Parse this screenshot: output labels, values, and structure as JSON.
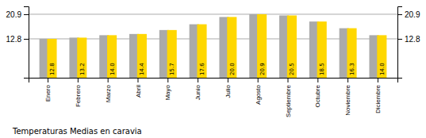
{
  "chart_data": {
    "type": "bar",
    "title": "Temperaturas Medias en caravia",
    "categories": [
      "Enero",
      "Febrero",
      "Marzo",
      "Abril",
      "Mayo",
      "Junio",
      "Julio",
      "Agosto",
      "Septiembre",
      "Octubre",
      "Noviembre",
      "Diciembre"
    ],
    "series": [
      {
        "color": "#AAAAAA",
        "values": [
          12.8,
          13.2,
          14.0,
          14.4,
          15.7,
          17.6,
          20.0,
          20.9,
          20.5,
          18.5,
          16.3,
          14.0
        ]
      },
      {
        "color": "#FFD700",
        "values": [
          12.8,
          13.2,
          14.0,
          14.4,
          15.7,
          17.6,
          20.0,
          20.9,
          20.5,
          18.5,
          16.3,
          14.0
        ],
        "value_labels": [
          "12.8",
          "13.2",
          "14.0",
          "14.4",
          "15.7",
          "17.6",
          "20.0",
          "20.9",
          "20.5",
          "18.5",
          "16.3",
          "14.0"
        ]
      }
    ],
    "ylim": [
      0,
      23.5
    ],
    "yticks": [
      12.8,
      20.9
    ],
    "y2lim": [
      0,
      23.5
    ],
    "y2ticks": [
      12.8,
      20.9
    ],
    "grid": true,
    "data_labels": true
  }
}
